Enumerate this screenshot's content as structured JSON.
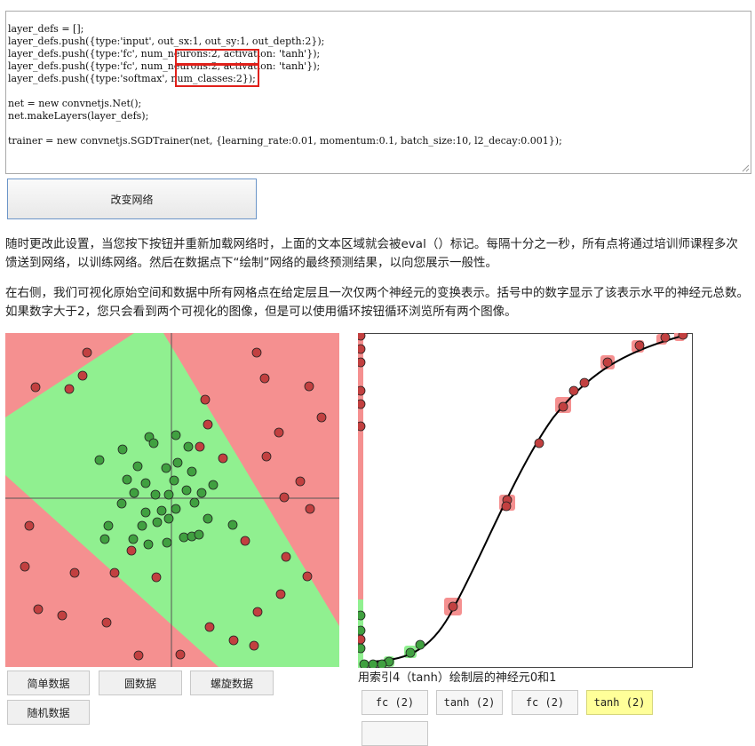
{
  "code_editor": {
    "lines": [
      "layer_defs = [];",
      "layer_defs.push({type:'input', out_sx:1, out_sy:1, out_depth:2});",
      "layer_defs.push({type:'fc', num_neurons:2, activation: 'tanh'});",
      "layer_defs.push({type:'fc', num_neurons:2, activation: 'tanh'});",
      "layer_defs.push({type:'softmax', num_classes:2});",
      "",
      "net = new convnetjs.Net();",
      "net.makeLayers(layer_defs);",
      "",
      "trainer = new convnetjs.SGDTrainer(net, {learning_rate:0.01, momentum:0.1, batch_size:10, l2_decay:0.001});"
    ]
  },
  "change_network_button": "改变网络",
  "description": {
    "para1": "随时更改此设置，当您按下按钮并重新加载网络时，上面的文本区域就会被eval（）标记。每隔十分之一秒，所有点将通过培训师课程多次馈送到网络，以训练网络。然后在数据点下“绘制”网络的最终预测结果，以向您展示一般性。",
    "para2": "在右侧，我们可视化原始空间和数据中所有网格点在给定层且一次仅两个神经元的变换表示。括号中的数字显示了该表示水平的神经元总数。如果数字大于2，您只会看到两个可视化的图像，但是可以使用循环按钮循环浏览所有两个图像。"
  },
  "data_buttons": [
    "简单数据",
    "圆数据",
    "螺旋数据",
    "随机数据"
  ],
  "layer_caption": "用索引4（tanh）绘制层的神经元0和1",
  "layer_buttons": [
    "fc (2)",
    "tanh (2)",
    "fc (2)",
    "tanh (2)",
    ""
  ],
  "active_layer_index": 3,
  "colors": {
    "red_region": "#f59090",
    "green_region": "#90f090",
    "red_point": "#c24040",
    "green_point": "#40a040",
    "highlight": "#e0201a",
    "active_button": "#ffff99"
  }
}
